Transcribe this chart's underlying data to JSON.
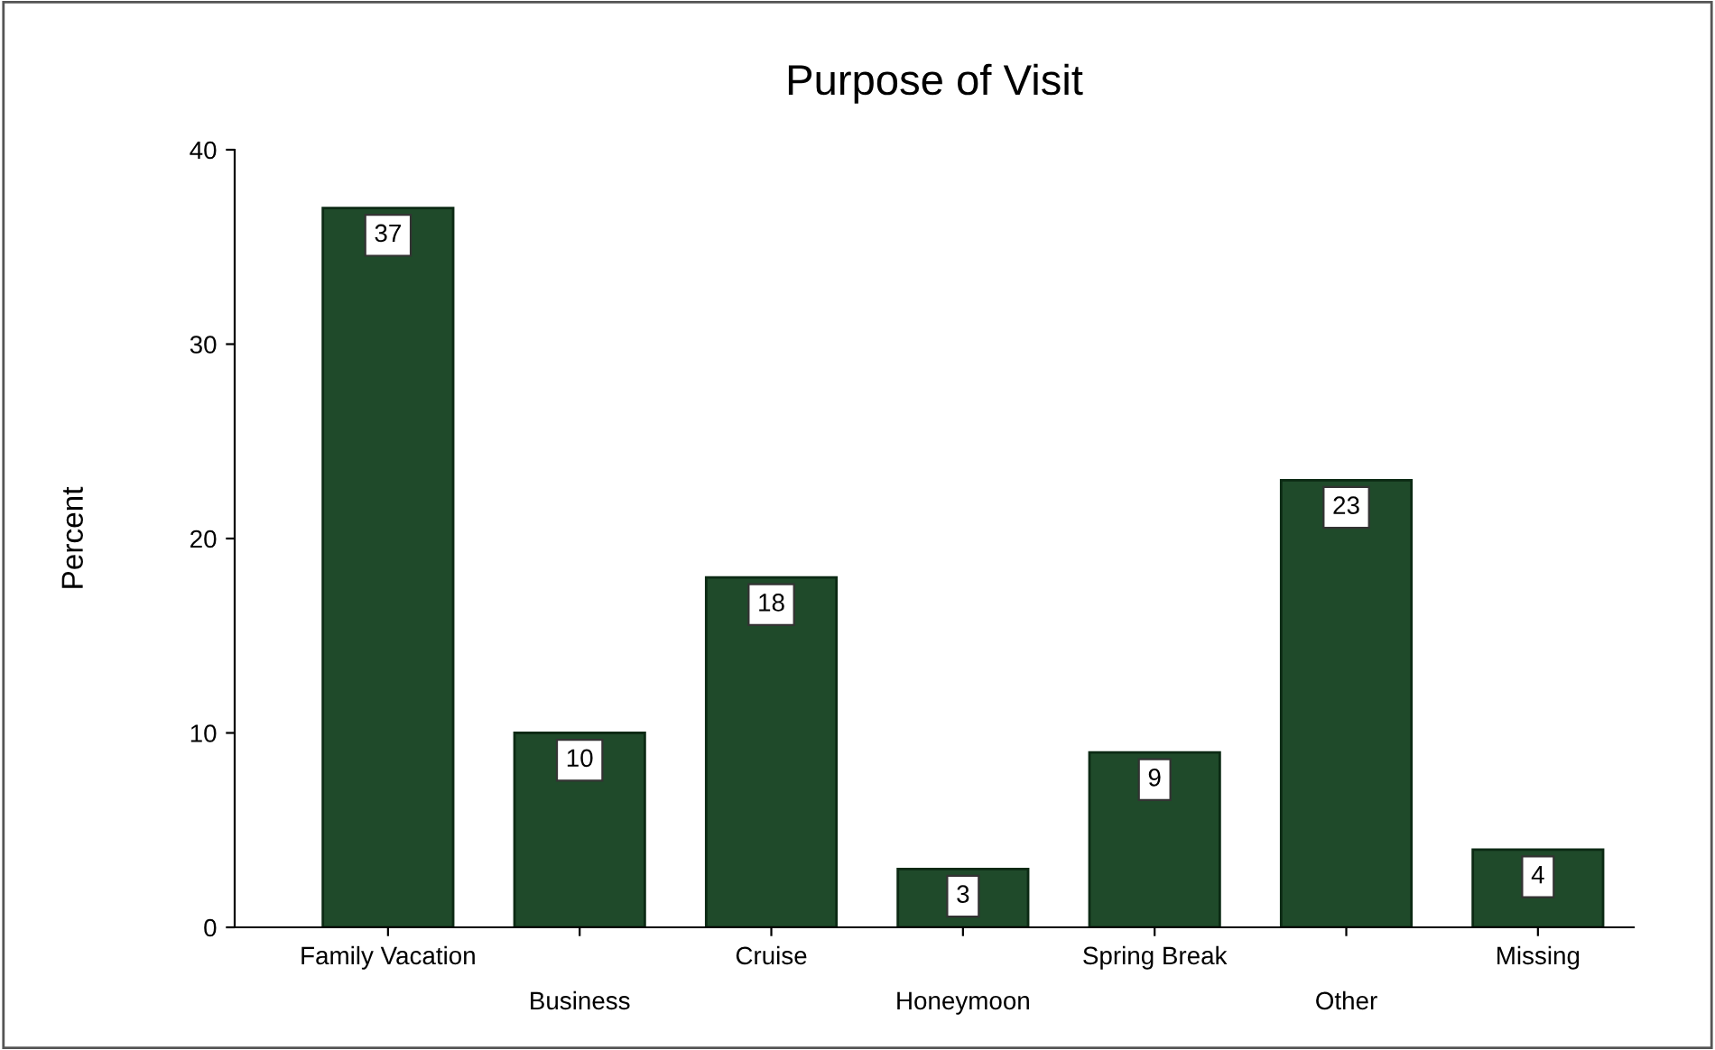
{
  "chart_data": {
    "type": "bar",
    "title": "Purpose of Visit",
    "ylabel": "Percent",
    "categories": [
      "Family Vacation",
      "Business",
      "Cruise",
      "Honeymoon",
      "Spring Break",
      "Other",
      "Missing"
    ],
    "values": [
      37,
      10,
      18,
      3,
      9,
      23,
      4
    ],
    "color": "#1f4a2a",
    "ylim": [
      0,
      40
    ],
    "yticks": [
      0,
      10,
      20,
      30,
      40
    ],
    "grid": false,
    "data_labels": true
  }
}
